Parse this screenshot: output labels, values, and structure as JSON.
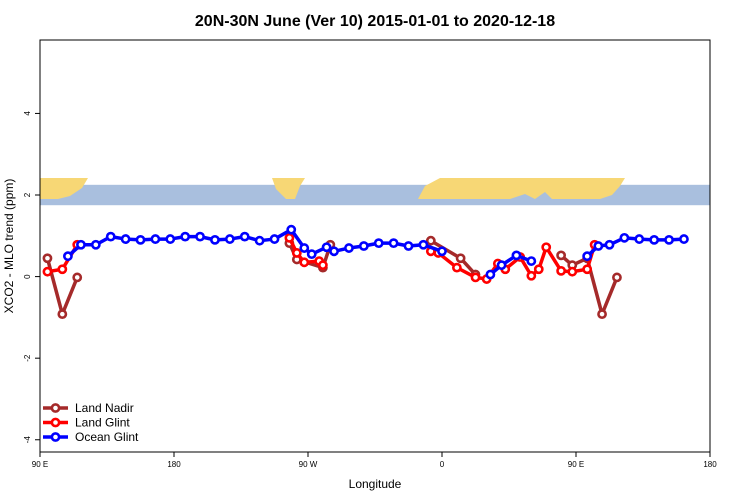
{
  "chart_data": {
    "type": "line",
    "title": "20N-30N June (Ver 10)   2015-01-01 to 2020-12-18",
    "xlabel": "Longitude",
    "ylabel": "XCO2 - MLO trend (ppm)",
    "xlim": [
      -180,
      180
    ],
    "ylim": [
      -4.3,
      5.8
    ],
    "x_ticks": [
      {
        "value": -180,
        "label": "90 E"
      },
      {
        "value": -108,
        "label": "180"
      },
      {
        "value": -36,
        "label": "90 W"
      },
      {
        "value": 36,
        "label": "0"
      },
      {
        "value": 108,
        "label": "90 E"
      },
      {
        "value": 180,
        "label": "180"
      }
    ],
    "y_ticks": [
      {
        "value": -4,
        "label": "-4"
      },
      {
        "value": -2,
        "label": "-2"
      },
      {
        "value": 0,
        "label": "0"
      },
      {
        "value": 2,
        "label": "2"
      },
      {
        "value": 4,
        "label": "4"
      }
    ],
    "map_band": {
      "y_range": [
        1.75,
        2.25
      ],
      "ocean_color": "#a9bfde",
      "land_color": "#f7d775"
    },
    "legend": {
      "position": "bottom-left"
    },
    "series": [
      {
        "name": "Land Nadir",
        "color": "#a52a2a",
        "segments": [
          [
            [
              -176,
              0.45
            ],
            [
              -168,
              -0.92
            ],
            [
              -160,
              -0.02
            ]
          ],
          [
            [
              -46,
              0.82
            ],
            [
              -42,
              0.42
            ],
            [
              -28,
              0.22
            ],
            [
              -24,
              0.78
            ]
          ],
          [
            [
              30,
              0.88
            ],
            [
              46,
              0.45
            ],
            [
              54,
              0.05
            ]
          ],
          [
            [
              100,
              0.52
            ],
            [
              106,
              0.28
            ],
            [
              114,
              0.45
            ],
            [
              122,
              -0.92
            ],
            [
              130,
              -0.02
            ]
          ]
        ]
      },
      {
        "name": "Land Glint",
        "color": "#ff0000",
        "segments": [
          [
            [
              -176,
              0.12
            ],
            [
              -168,
              0.18
            ],
            [
              -160,
              0.78
            ]
          ],
          [
            [
              -46,
              0.95
            ],
            [
              -42,
              0.58
            ],
            [
              -38,
              0.35
            ],
            [
              -30,
              0.38
            ],
            [
              -28,
              0.28
            ]
          ],
          [
            [
              30,
              0.62
            ],
            [
              34,
              0.58
            ],
            [
              44,
              0.22
            ],
            [
              54,
              -0.02
            ],
            [
              60,
              -0.06
            ],
            [
              66,
              0.32
            ],
            [
              70,
              0.18
            ],
            [
              78,
              0.48
            ],
            [
              84,
              0.02
            ],
            [
              88,
              0.18
            ],
            [
              92,
              0.72
            ],
            [
              100,
              0.14
            ],
            [
              106,
              0.12
            ],
            [
              114,
              0.18
            ],
            [
              118,
              0.78
            ]
          ]
        ]
      },
      {
        "name": "Ocean Glint",
        "color": "#0000ff",
        "segments": [
          [
            [
              -165,
              0.5
            ],
            [
              -158,
              0.78
            ],
            [
              -150,
              0.78
            ],
            [
              -142,
              0.98
            ],
            [
              -134,
              0.92
            ],
            [
              -126,
              0.9
            ],
            [
              -118,
              0.92
            ],
            [
              -110,
              0.92
            ],
            [
              -102,
              0.98
            ],
            [
              -94,
              0.98
            ],
            [
              -86,
              0.9
            ],
            [
              -78,
              0.92
            ],
            [
              -70,
              0.98
            ],
            [
              -62,
              0.88
            ],
            [
              -54,
              0.92
            ],
            [
              -45,
              1.15
            ],
            [
              -38,
              0.7
            ],
            [
              -34,
              0.55
            ],
            [
              -26,
              0.72
            ],
            [
              -22,
              0.62
            ],
            [
              -14,
              0.7
            ],
            [
              -6,
              0.75
            ],
            [
              2,
              0.82
            ],
            [
              10,
              0.82
            ],
            [
              18,
              0.75
            ],
            [
              26,
              0.78
            ],
            [
              36,
              0.62
            ]
          ],
          [
            [
              62,
              0.05
            ],
            [
              68,
              0.28
            ],
            [
              76,
              0.52
            ],
            [
              84,
              0.38
            ]
          ],
          [
            [
              114,
              0.5
            ],
            [
              120,
              0.75
            ],
            [
              126,
              0.78
            ],
            [
              134,
              0.95
            ],
            [
              142,
              0.92
            ],
            [
              150,
              0.9
            ],
            [
              158,
              0.9
            ],
            [
              166,
              0.92
            ]
          ]
        ]
      }
    ]
  }
}
